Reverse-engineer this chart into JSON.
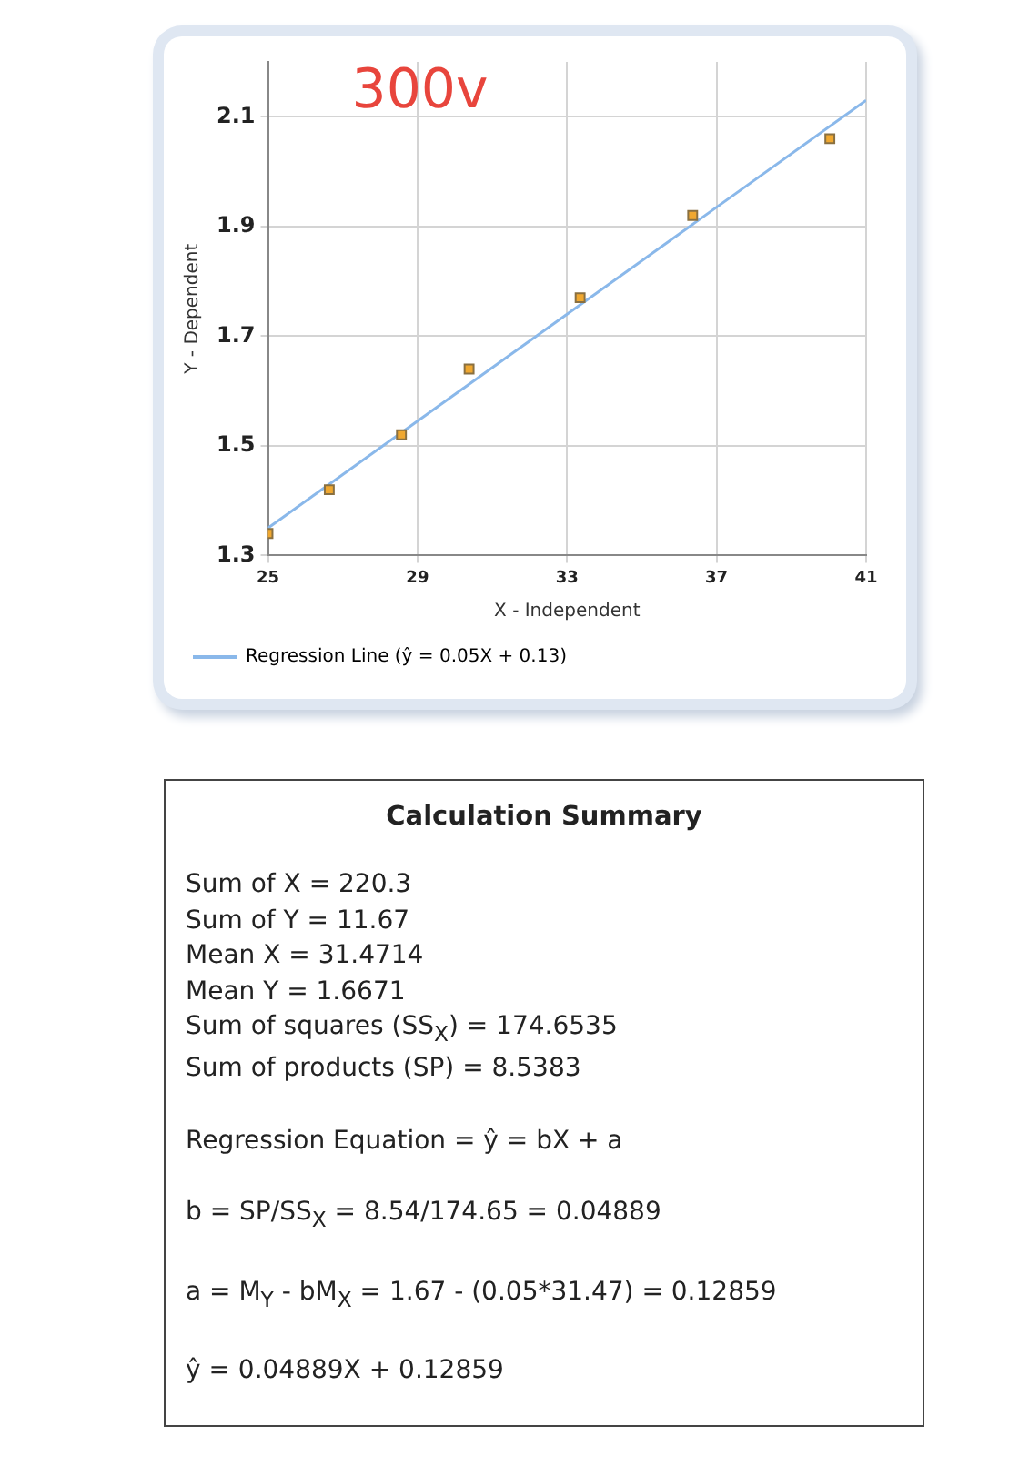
{
  "chart_data": [
    {
      "type": "scatter",
      "xlabel": "X - Independent",
      "ylabel": "Y - Dependent",
      "annotations": [
        "300v"
      ],
      "xlim": [
        25,
        41
      ],
      "xticks": [
        25,
        29,
        33,
        37,
        41
      ],
      "ylim": [
        1.3,
        2.2
      ],
      "yticks": [
        1.3,
        1.5,
        1.7,
        1.9,
        2.1
      ],
      "grid": true,
      "legend": "bottom",
      "marker": "square",
      "series": [
        {
          "type": "scatter",
          "color": "#f0a830",
          "x": [
            25,
            26.64,
            28.57,
            30.38,
            33.35,
            36.36,
            40.03
          ],
          "values": [
            1.34,
            1.42,
            1.52,
            1.64,
            1.77,
            1.92,
            2.06
          ]
        },
        {
          "type": "line",
          "name": "Regression Line (ŷ = 0.05X + 0.13)",
          "color": "#8ab8ea",
          "marker": "none",
          "x": [
            25,
            41
          ],
          "values": [
            1.35,
            2.13
          ]
        }
      ]
    },
    {
      "type": "other",
      "title": "Calculation Summary",
      "annotations": [
        "Sum of X = 220.3",
        "Sum of Y = 11.67",
        "Mean X = 31.4714",
        "Mean Y = 1.6671",
        "Sum of squares (SS$_{X}$) = 174.6535",
        "Sum of products (SP) = 8.5383",
        "Regression Equation = ŷ = bX + a",
        "b = SP/SS$_{X}$ = 8.54/174.65 = 0.04889",
        "a = M$_{Y}$ - bM$_{X}$ = 1.67 - (0.05*31.47) = 0.12859",
        "ŷ = 0.04889X + 0.12859"
      ]
    }
  ]
}
